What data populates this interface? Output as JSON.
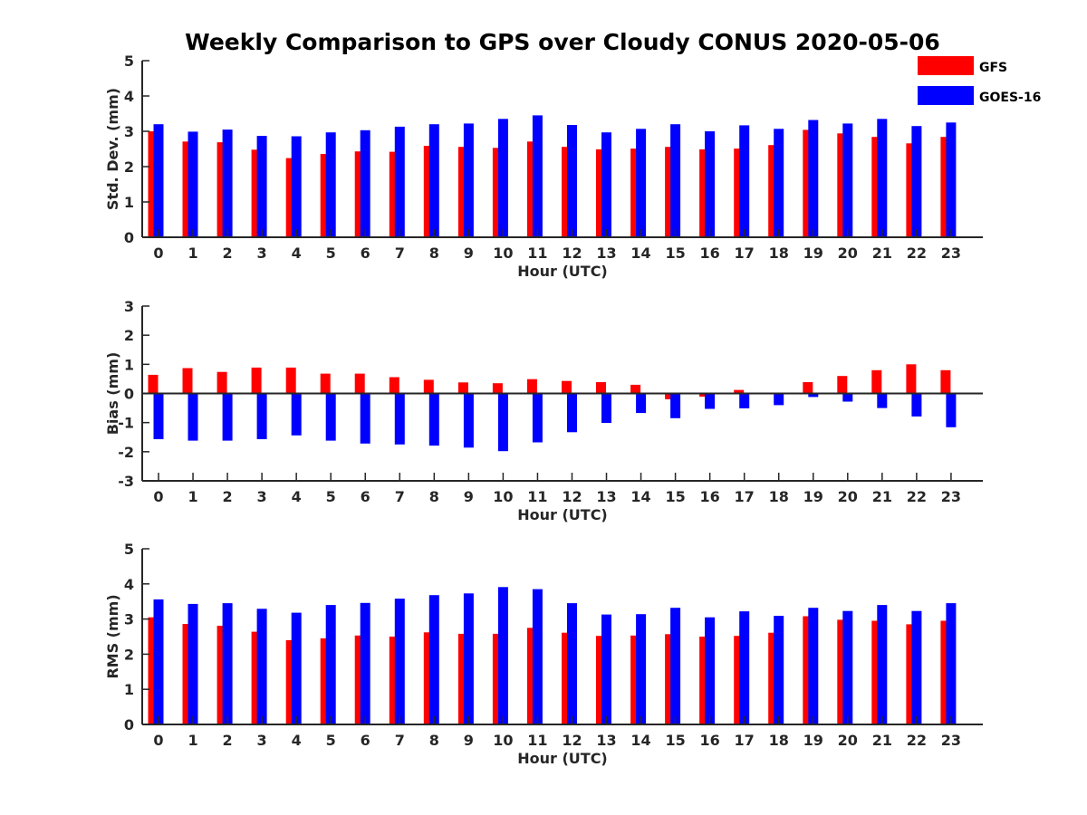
{
  "title": "Weekly Comparison to GPS over Cloudy CONUS 2020-05-06",
  "legend": {
    "placement": "top-right",
    "items": [
      {
        "name": "GFS",
        "color": "#ff0000"
      },
      {
        "name": "GOES-16",
        "color": "#0000ff"
      }
    ]
  },
  "chart_data": [
    {
      "type": "bar",
      "title": "Weekly Comparison to GPS over Cloudy CONUS 2020-05-06",
      "xlabel": "Hour (UTC)",
      "ylabel": "Std. Dev. (mm)",
      "ylim": [
        0,
        5
      ],
      "yticks": [
        "0",
        "1",
        "2",
        "3",
        "4",
        "5"
      ],
      "categories": [
        "0",
        "1",
        "2",
        "3",
        "4",
        "5",
        "6",
        "7",
        "8",
        "9",
        "10",
        "11",
        "12",
        "13",
        "14",
        "15",
        "16",
        "17",
        "18",
        "19",
        "20",
        "21",
        "22",
        "23"
      ],
      "series": [
        {
          "name": "GFS",
          "color": "#ff0000",
          "values": [
            3.0,
            2.71,
            2.69,
            2.48,
            2.24,
            2.36,
            2.43,
            2.42,
            2.59,
            2.56,
            2.53,
            2.71,
            2.56,
            2.49,
            2.51,
            2.56,
            2.49,
            2.51,
            2.61,
            3.04,
            2.94,
            2.84,
            2.66,
            2.84
          ]
        },
        {
          "name": "GOES-16",
          "color": "#0000ff",
          "values": [
            3.2,
            2.99,
            3.05,
            2.87,
            2.86,
            2.97,
            3.03,
            3.13,
            3.2,
            3.22,
            3.35,
            3.45,
            3.18,
            2.97,
            3.07,
            3.2,
            3.0,
            3.17,
            3.07,
            3.32,
            3.22,
            3.35,
            3.15,
            3.25
          ]
        }
      ]
    },
    {
      "type": "bar",
      "xlabel": "Hour (UTC)",
      "ylabel": "Bias (mm)",
      "ylim": [
        -3,
        3
      ],
      "yticks": [
        "-3",
        "-2",
        "-1",
        "0",
        "1",
        "2",
        "3"
      ],
      "categories": [
        "0",
        "1",
        "2",
        "3",
        "4",
        "5",
        "6",
        "7",
        "8",
        "9",
        "10",
        "11",
        "12",
        "13",
        "14",
        "15",
        "16",
        "17",
        "18",
        "19",
        "20",
        "21",
        "22",
        "23"
      ],
      "series": [
        {
          "name": "GFS",
          "color": "#ff0000",
          "values": [
            0.64,
            0.87,
            0.74,
            0.89,
            0.89,
            0.68,
            0.68,
            0.56,
            0.47,
            0.38,
            0.35,
            0.49,
            0.43,
            0.39,
            0.3,
            -0.2,
            -0.11,
            0.12,
            0.0,
            0.39,
            0.6,
            0.8,
            1.0,
            0.8
          ]
        },
        {
          "name": "GOES-16",
          "color": "#0000ff",
          "values": [
            -1.57,
            -1.62,
            -1.62,
            -1.57,
            -1.44,
            -1.62,
            -1.72,
            -1.75,
            -1.79,
            -1.86,
            -1.98,
            -1.68,
            -1.33,
            -1.01,
            -0.67,
            -0.85,
            -0.53,
            -0.51,
            -0.4,
            -0.12,
            -0.28,
            -0.5,
            -0.79,
            -1.16
          ]
        }
      ]
    },
    {
      "type": "bar",
      "xlabel": "Hour (UTC)",
      "ylabel": "RMS (mm)",
      "ylim": [
        0,
        5
      ],
      "yticks": [
        "0",
        "1",
        "2",
        "3",
        "4",
        "5"
      ],
      "categories": [
        "0",
        "1",
        "2",
        "3",
        "4",
        "5",
        "6",
        "7",
        "8",
        "9",
        "10",
        "11",
        "12",
        "13",
        "14",
        "15",
        "16",
        "17",
        "18",
        "19",
        "20",
        "21",
        "22",
        "23"
      ],
      "series": [
        {
          "name": "GFS",
          "color": "#ff0000",
          "values": [
            3.05,
            2.86,
            2.81,
            2.64,
            2.4,
            2.45,
            2.53,
            2.5,
            2.62,
            2.58,
            2.58,
            2.75,
            2.61,
            2.52,
            2.53,
            2.57,
            2.5,
            2.52,
            2.61,
            3.08,
            2.98,
            2.95,
            2.85,
            2.95
          ]
        },
        {
          "name": "GOES-16",
          "color": "#0000ff",
          "values": [
            3.56,
            3.43,
            3.45,
            3.29,
            3.18,
            3.4,
            3.46,
            3.58,
            3.68,
            3.73,
            3.91,
            3.85,
            3.45,
            3.13,
            3.14,
            3.32,
            3.05,
            3.22,
            3.09,
            3.32,
            3.23,
            3.4,
            3.23,
            3.45
          ]
        }
      ]
    }
  ]
}
